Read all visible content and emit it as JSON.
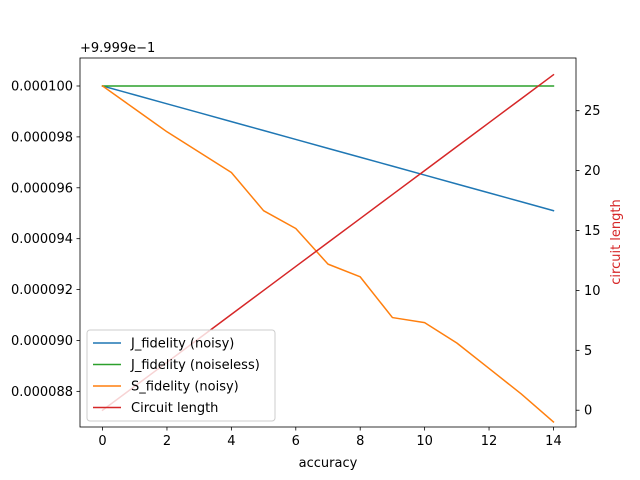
{
  "chart_data": {
    "type": "line",
    "xlabel": "accuracy",
    "ylabel_right": "circuit length",
    "ylabel_right_color": "#d62728",
    "offset_text": "+9.999e−1",
    "xlim": [
      -0.7,
      14.7
    ],
    "ylim_left": [
      8.66e-05,
      0.0001011
    ],
    "ylim_right": [
      -1.4,
      29.4
    ],
    "x_ticks": [
      0,
      2,
      4,
      6,
      8,
      10,
      12,
      14
    ],
    "x_tick_labels": [
      "0",
      "2",
      "4",
      "6",
      "8",
      "10",
      "12",
      "14"
    ],
    "y_left_ticks": [
      8.8e-05,
      9e-05,
      9.2e-05,
      9.4e-05,
      9.6e-05,
      9.8e-05,
      0.0001
    ],
    "y_left_tick_labels": [
      "0.000088",
      "0.000090",
      "0.000092",
      "0.000094",
      "0.000096",
      "0.000098",
      "0.000100"
    ],
    "y_right_ticks": [
      0,
      5,
      10,
      15,
      20,
      25
    ],
    "y_right_tick_labels": [
      "0",
      "5",
      "10",
      "15",
      "20",
      "25"
    ],
    "legend_position": "lower-left",
    "x": [
      0,
      1,
      2,
      3,
      4,
      5,
      6,
      7,
      8,
      9,
      10,
      11,
      12,
      13,
      14
    ],
    "series": [
      {
        "name": "J_fidelity (noisy)",
        "color": "#1f77b4",
        "axis": "left",
        "values": [
          0.0001,
          9.965e-05,
          9.93e-05,
          9.895e-05,
          9.86e-05,
          9.825e-05,
          9.79e-05,
          9.755e-05,
          9.72e-05,
          9.685e-05,
          9.65e-05,
          9.615e-05,
          9.58e-05,
          9.545e-05,
          9.51e-05
        ]
      },
      {
        "name": "J_fidelity (noiseless)",
        "color": "#2ca02c",
        "axis": "left",
        "values": [
          0.0001,
          0.0001,
          0.0001,
          0.0001,
          0.0001,
          0.0001,
          0.0001,
          0.0001,
          0.0001,
          0.0001,
          0.0001,
          0.0001,
          0.0001,
          0.0001,
          0.0001
        ]
      },
      {
        "name": "S_fidelity (noisy)",
        "color": "#ff7f0e",
        "axis": "left",
        "values": [
          0.0001,
          9.91e-05,
          9.82e-05,
          9.74e-05,
          9.66e-05,
          9.51e-05,
          9.44e-05,
          9.3e-05,
          9.25e-05,
          9.09e-05,
          9.07e-05,
          8.99e-05,
          8.89e-05,
          8.79e-05,
          8.68e-05
        ]
      },
      {
        "name": "Circuit length",
        "color": "#d62728",
        "axis": "right",
        "values": [
          0,
          2,
          4,
          6,
          8,
          10,
          12,
          14,
          16,
          18,
          20,
          22,
          24,
          26,
          28
        ]
      }
    ]
  }
}
